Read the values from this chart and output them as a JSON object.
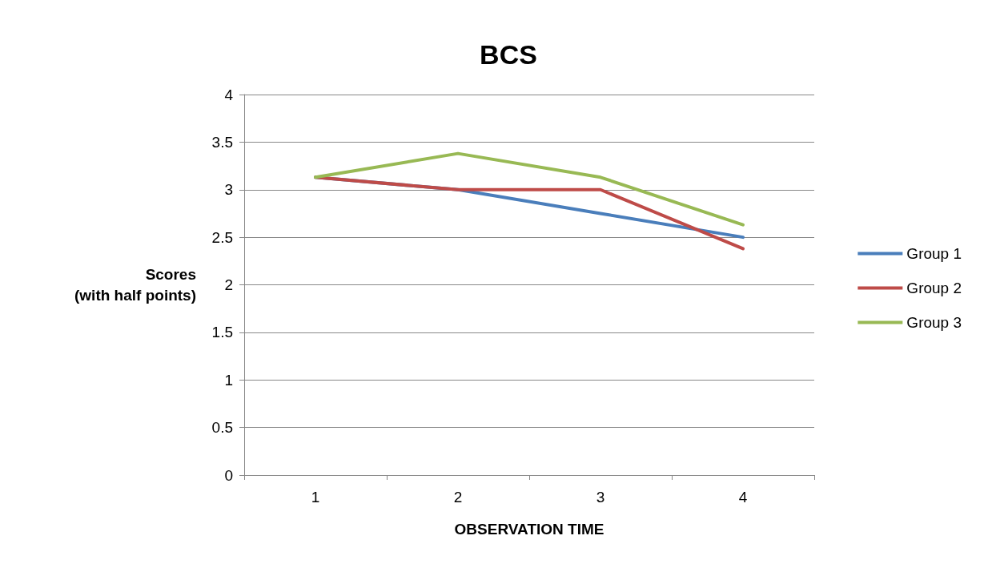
{
  "chart_data": {
    "type": "line",
    "title": "BCS",
    "xlabel": "OBSERVATION TIME",
    "ylabel": "Scores\n(with half points)",
    "categories": [
      "1",
      "2",
      "3",
      "4"
    ],
    "series": [
      {
        "name": "Group 1",
        "color": "#4a7ebb",
        "values": [
          3.13,
          3,
          2.75,
          2.5
        ]
      },
      {
        "name": "Group 2",
        "color": "#be4b48",
        "values": [
          3.13,
          3,
          3,
          2.38
        ]
      },
      {
        "name": "Group 3",
        "color": "#98b954",
        "values": [
          3.13,
          3.38,
          3.13,
          2.63
        ]
      }
    ],
    "ylim": [
      0,
      4
    ],
    "yticks": [
      0,
      0.5,
      1,
      1.5,
      2,
      2.5,
      3,
      3.5,
      4
    ],
    "grid": "y",
    "legend": "right",
    "marker": "none",
    "line_style": "solid"
  }
}
